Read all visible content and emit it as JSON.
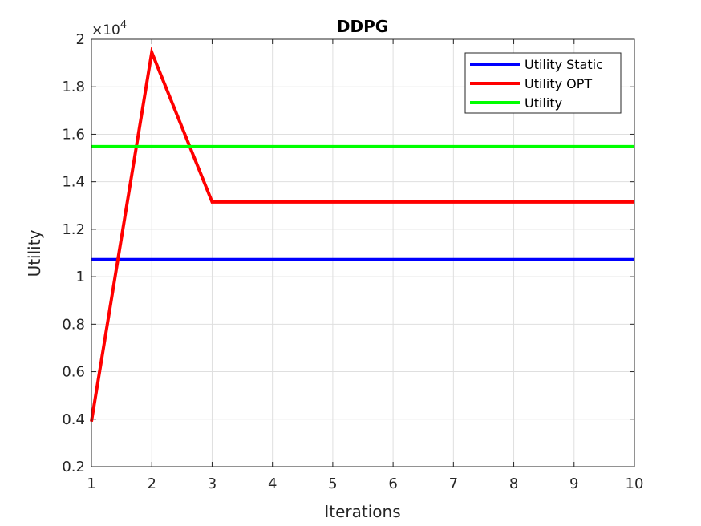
{
  "chart_data": {
    "type": "line",
    "title": "DDPG",
    "xlabel": "Iterations",
    "ylabel": "Utility",
    "y_multiplier_base": "×10",
    "y_multiplier_exp": "4",
    "xlim": [
      1,
      10
    ],
    "ylim": [
      0.2,
      2.0
    ],
    "xticks": [
      1,
      2,
      3,
      4,
      5,
      6,
      7,
      8,
      9,
      10
    ],
    "yticks": [
      0.2,
      0.4,
      0.6,
      0.8,
      1.0,
      1.2,
      1.4,
      1.6,
      1.8,
      2.0
    ],
    "ytick_labels": [
      "0.2",
      "0.4",
      "0.6",
      "0.8",
      "1",
      "1.2",
      "1.4",
      "1.6",
      "1.8",
      "2"
    ],
    "x": [
      1,
      2,
      3,
      4,
      5,
      6,
      7,
      8,
      9,
      10
    ],
    "grid": true,
    "legend_position": "top-right",
    "series": [
      {
        "name": "Utility Static",
        "color": "#0000ff",
        "values": [
          1.072,
          1.072,
          1.072,
          1.072,
          1.072,
          1.072,
          1.072,
          1.072,
          1.072,
          1.072
        ]
      },
      {
        "name": "Utility OPT",
        "color": "#ff0000",
        "values": [
          0.39,
          1.945,
          1.315,
          1.315,
          1.315,
          1.315,
          1.315,
          1.315,
          1.315,
          1.315
        ]
      },
      {
        "name": "Utility",
        "color": "#00ff00",
        "values": [
          1.548,
          1.548,
          1.548,
          1.548,
          1.548,
          1.548,
          1.548,
          1.548,
          1.548,
          1.548
        ]
      }
    ]
  }
}
